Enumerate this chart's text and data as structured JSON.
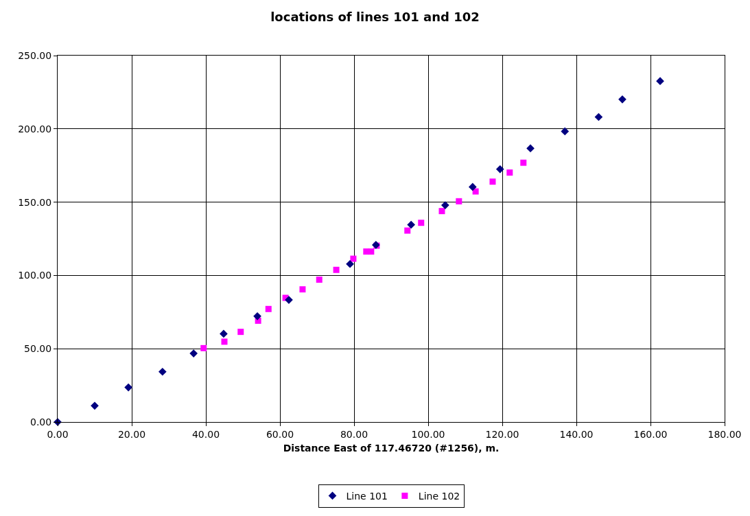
{
  "chart_data": {
    "type": "scatter",
    "title": "locations of lines 101 and 102",
    "xlabel": "Distance East of 117.46720 (#1256), m.",
    "xlim": [
      0,
      180
    ],
    "ylim": [
      0,
      250
    ],
    "xticks": [
      {
        "value": 0,
        "label": "0.00"
      },
      {
        "value": 20,
        "label": "20.00"
      },
      {
        "value": 40,
        "label": "40.00"
      },
      {
        "value": 60,
        "label": "60.00"
      },
      {
        "value": 80,
        "label": "80.00"
      },
      {
        "value": 100,
        "label": "100.00"
      },
      {
        "value": 120,
        "label": "120.00"
      },
      {
        "value": 140,
        "label": "140.00"
      },
      {
        "value": 160,
        "label": "160.00"
      },
      {
        "value": 180,
        "label": "180.00"
      }
    ],
    "yticks": [
      {
        "value": 0,
        "label": "0.00"
      },
      {
        "value": 50,
        "label": "50.00"
      },
      {
        "value": 100,
        "label": "100.00"
      },
      {
        "value": 150,
        "label": "150.00"
      },
      {
        "value": 200,
        "label": "200.00"
      },
      {
        "value": 250,
        "label": "250.00"
      }
    ],
    "grid": true,
    "legend": "bottom",
    "series": [
      {
        "name": "Line 101",
        "color": "#000080",
        "marker": "diamond",
        "x": [
          0,
          10.0,
          19.1,
          28.3,
          36.7,
          44.8,
          53.9,
          62.4,
          78.9,
          85.9,
          95.4,
          104.6,
          112.0,
          119.4,
          127.6,
          136.9,
          146.0,
          152.4,
          162.6
        ],
        "values": [
          0,
          11.1,
          23.6,
          34.3,
          46.8,
          60.2,
          72.2,
          83.3,
          107.8,
          120.8,
          134.6,
          147.9,
          160.4,
          172.5,
          186.7,
          198.3,
          208.1,
          220.1,
          232.6
        ]
      },
      {
        "name": "Line 102",
        "color": "#ff00ff",
        "marker": "square",
        "x": [
          39.4,
          45.0,
          49.4,
          54.1,
          56.9,
          61.5,
          66.1,
          70.6,
          75.2,
          79.8,
          83.3,
          84.6,
          86.1,
          94.4,
          98.1,
          103.7,
          108.3,
          112.8,
          117.4,
          122.0,
          125.7
        ],
        "values": [
          50.4,
          54.8,
          61.5,
          69.1,
          77.1,
          84.7,
          90.5,
          97.1,
          103.8,
          111.4,
          116.3,
          116.3,
          120.3,
          130.6,
          135.9,
          143.9,
          150.6,
          157.3,
          164.0,
          170.2,
          176.9
        ]
      }
    ]
  }
}
